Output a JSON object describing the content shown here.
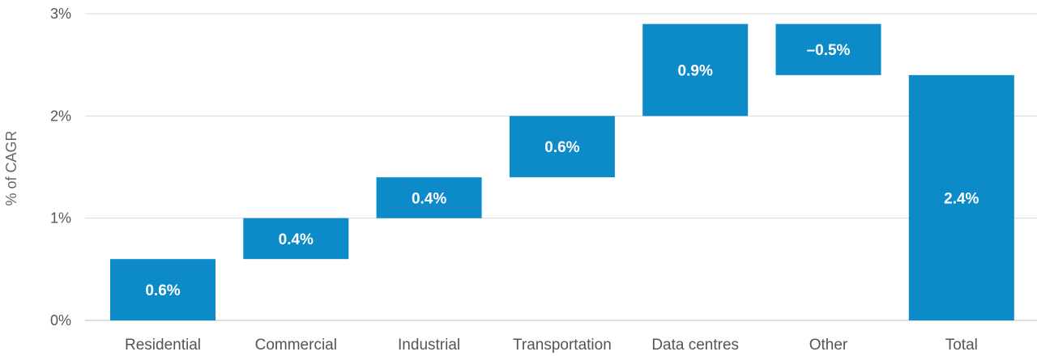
{
  "chart_data": {
    "type": "bar",
    "subtype": "waterfall",
    "categories": [
      "Residential",
      "Commercial",
      "Industrial",
      "Transportation",
      "Data centres",
      "Other",
      "Total"
    ],
    "values": [
      0.6,
      0.4,
      0.4,
      0.6,
      0.9,
      -0.5,
      2.4
    ],
    "data_labels": [
      "0.6%",
      "0.4%",
      "0.4%",
      "0.6%",
      "0.9%",
      "–0.5%",
      "2.4%"
    ],
    "is_total": [
      false,
      false,
      false,
      false,
      false,
      false,
      true
    ],
    "ylabel": "% of CAGR",
    "xlabel": "",
    "ylim": [
      0,
      3
    ],
    "yticks": [
      0,
      1,
      2,
      3
    ],
    "ytick_labels": [
      "0%",
      "1%",
      "2%",
      "3%"
    ],
    "grid": true,
    "legend": "none",
    "bar_color": "#0d8ac8",
    "grid_color": "#d9d9d9"
  }
}
